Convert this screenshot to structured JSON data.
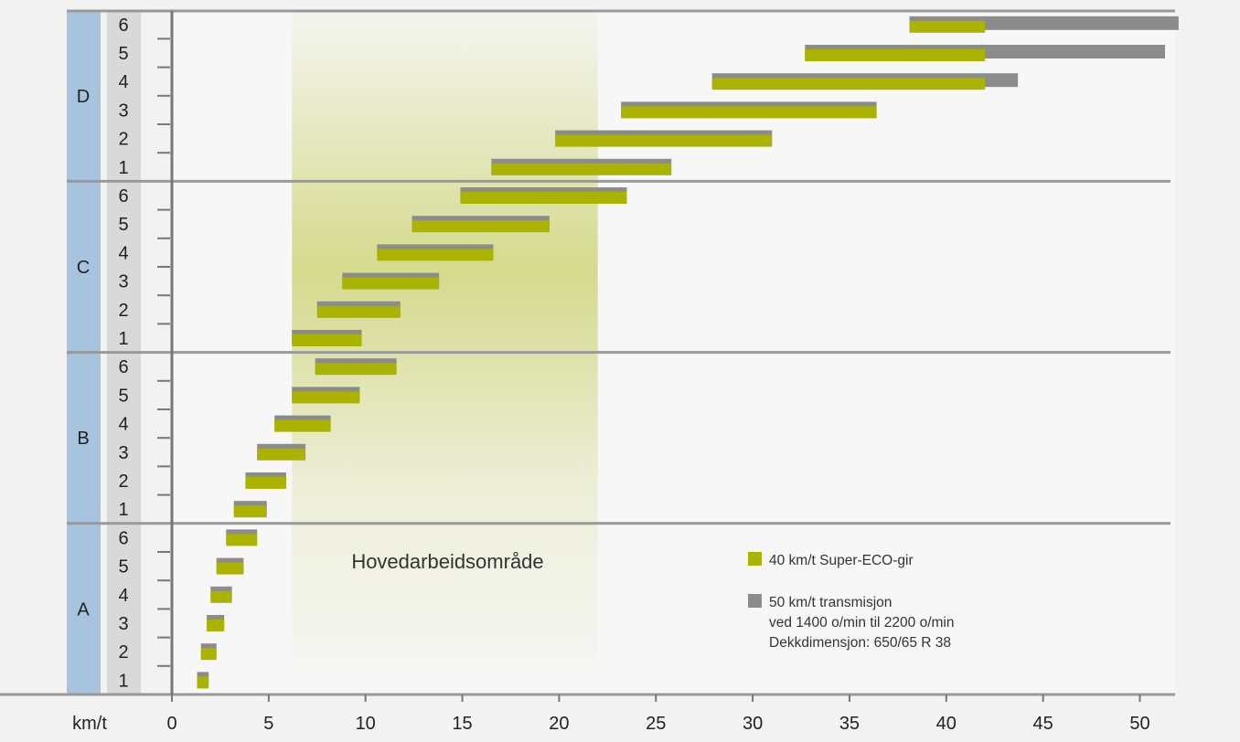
{
  "chart_data": {
    "type": "bar",
    "subtype": "floating-range-horizontal",
    "x_unit_label": "km/t",
    "xlim": [
      0,
      52
    ],
    "x_ticks": [
      0,
      5,
      10,
      15,
      20,
      25,
      30,
      35,
      40,
      45,
      50
    ],
    "highlight_region": {
      "label": "Hovedarbeidsområde",
      "x": [
        6.2,
        22.0
      ]
    },
    "groups": [
      {
        "name": "A",
        "gears": [
          "1",
          "2",
          "3",
          "4",
          "5",
          "6"
        ]
      },
      {
        "name": "B",
        "gears": [
          "1",
          "2",
          "3",
          "4",
          "5",
          "6"
        ]
      },
      {
        "name": "C",
        "gears": [
          "1",
          "2",
          "3",
          "4",
          "5",
          "6"
        ]
      },
      {
        "name": "D",
        "gears": [
          "1",
          "2",
          "3",
          "4",
          "5",
          "6"
        ]
      }
    ],
    "series": [
      {
        "name": "50 km/t transmisjon",
        "color": "#8c8c8c",
        "ranges": [
          [
            1.3,
            1.9
          ],
          [
            1.5,
            2.3
          ],
          [
            1.8,
            2.7
          ],
          [
            2.0,
            3.1
          ],
          [
            2.3,
            3.7
          ],
          [
            2.8,
            4.4
          ],
          [
            3.2,
            4.9
          ],
          [
            3.8,
            5.9
          ],
          [
            4.4,
            6.9
          ],
          [
            5.3,
            8.2
          ],
          [
            6.2,
            9.7
          ],
          [
            7.4,
            11.6
          ],
          [
            6.2,
            9.8
          ],
          [
            7.5,
            11.8
          ],
          [
            8.8,
            13.8
          ],
          [
            10.6,
            16.6
          ],
          [
            12.4,
            19.5
          ],
          [
            14.9,
            23.5
          ],
          [
            16.5,
            25.8
          ],
          [
            19.8,
            31.0
          ],
          [
            23.2,
            36.4
          ],
          [
            27.9,
            43.7
          ],
          [
            32.7,
            51.3
          ],
          [
            38.1,
            52.0
          ]
        ]
      },
      {
        "name": "40 km/t Super-ECO-gir",
        "color": "#a9b300",
        "ranges": [
          [
            1.3,
            1.9
          ],
          [
            1.5,
            2.3
          ],
          [
            1.8,
            2.7
          ],
          [
            2.0,
            3.1
          ],
          [
            2.3,
            3.7
          ],
          [
            2.8,
            4.4
          ],
          [
            3.2,
            4.9
          ],
          [
            3.8,
            5.9
          ],
          [
            4.4,
            6.9
          ],
          [
            5.3,
            8.2
          ],
          [
            6.2,
            9.7
          ],
          [
            7.4,
            11.6
          ],
          [
            6.2,
            9.8
          ],
          [
            7.5,
            11.8
          ],
          [
            8.8,
            13.8
          ],
          [
            10.6,
            16.6
          ],
          [
            12.4,
            19.5
          ],
          [
            14.9,
            23.5
          ],
          [
            16.5,
            25.8
          ],
          [
            19.8,
            31.0
          ],
          [
            23.2,
            36.4
          ],
          [
            27.9,
            42.0
          ],
          [
            32.7,
            42.0
          ],
          [
            38.1,
            42.0
          ]
        ]
      }
    ],
    "legend": {
      "placement": "bottom-right",
      "items": [
        {
          "color": "#a9b300",
          "lines": [
            "40 km/t Super-ECO-gir"
          ]
        },
        {
          "color": "#8c8c8c",
          "lines": [
            "50 km/t transmisjon",
            "ved 1400 o/min til 2200 o/min",
            "Dekkdimensjon: 650/65 R 38"
          ]
        }
      ]
    }
  },
  "colors": {
    "background": "#f2f2f2",
    "group_band": "#a7c4de",
    "gear_band": "#d9d9d9",
    "separator": "#999999",
    "highlight": "#cfd57a"
  }
}
